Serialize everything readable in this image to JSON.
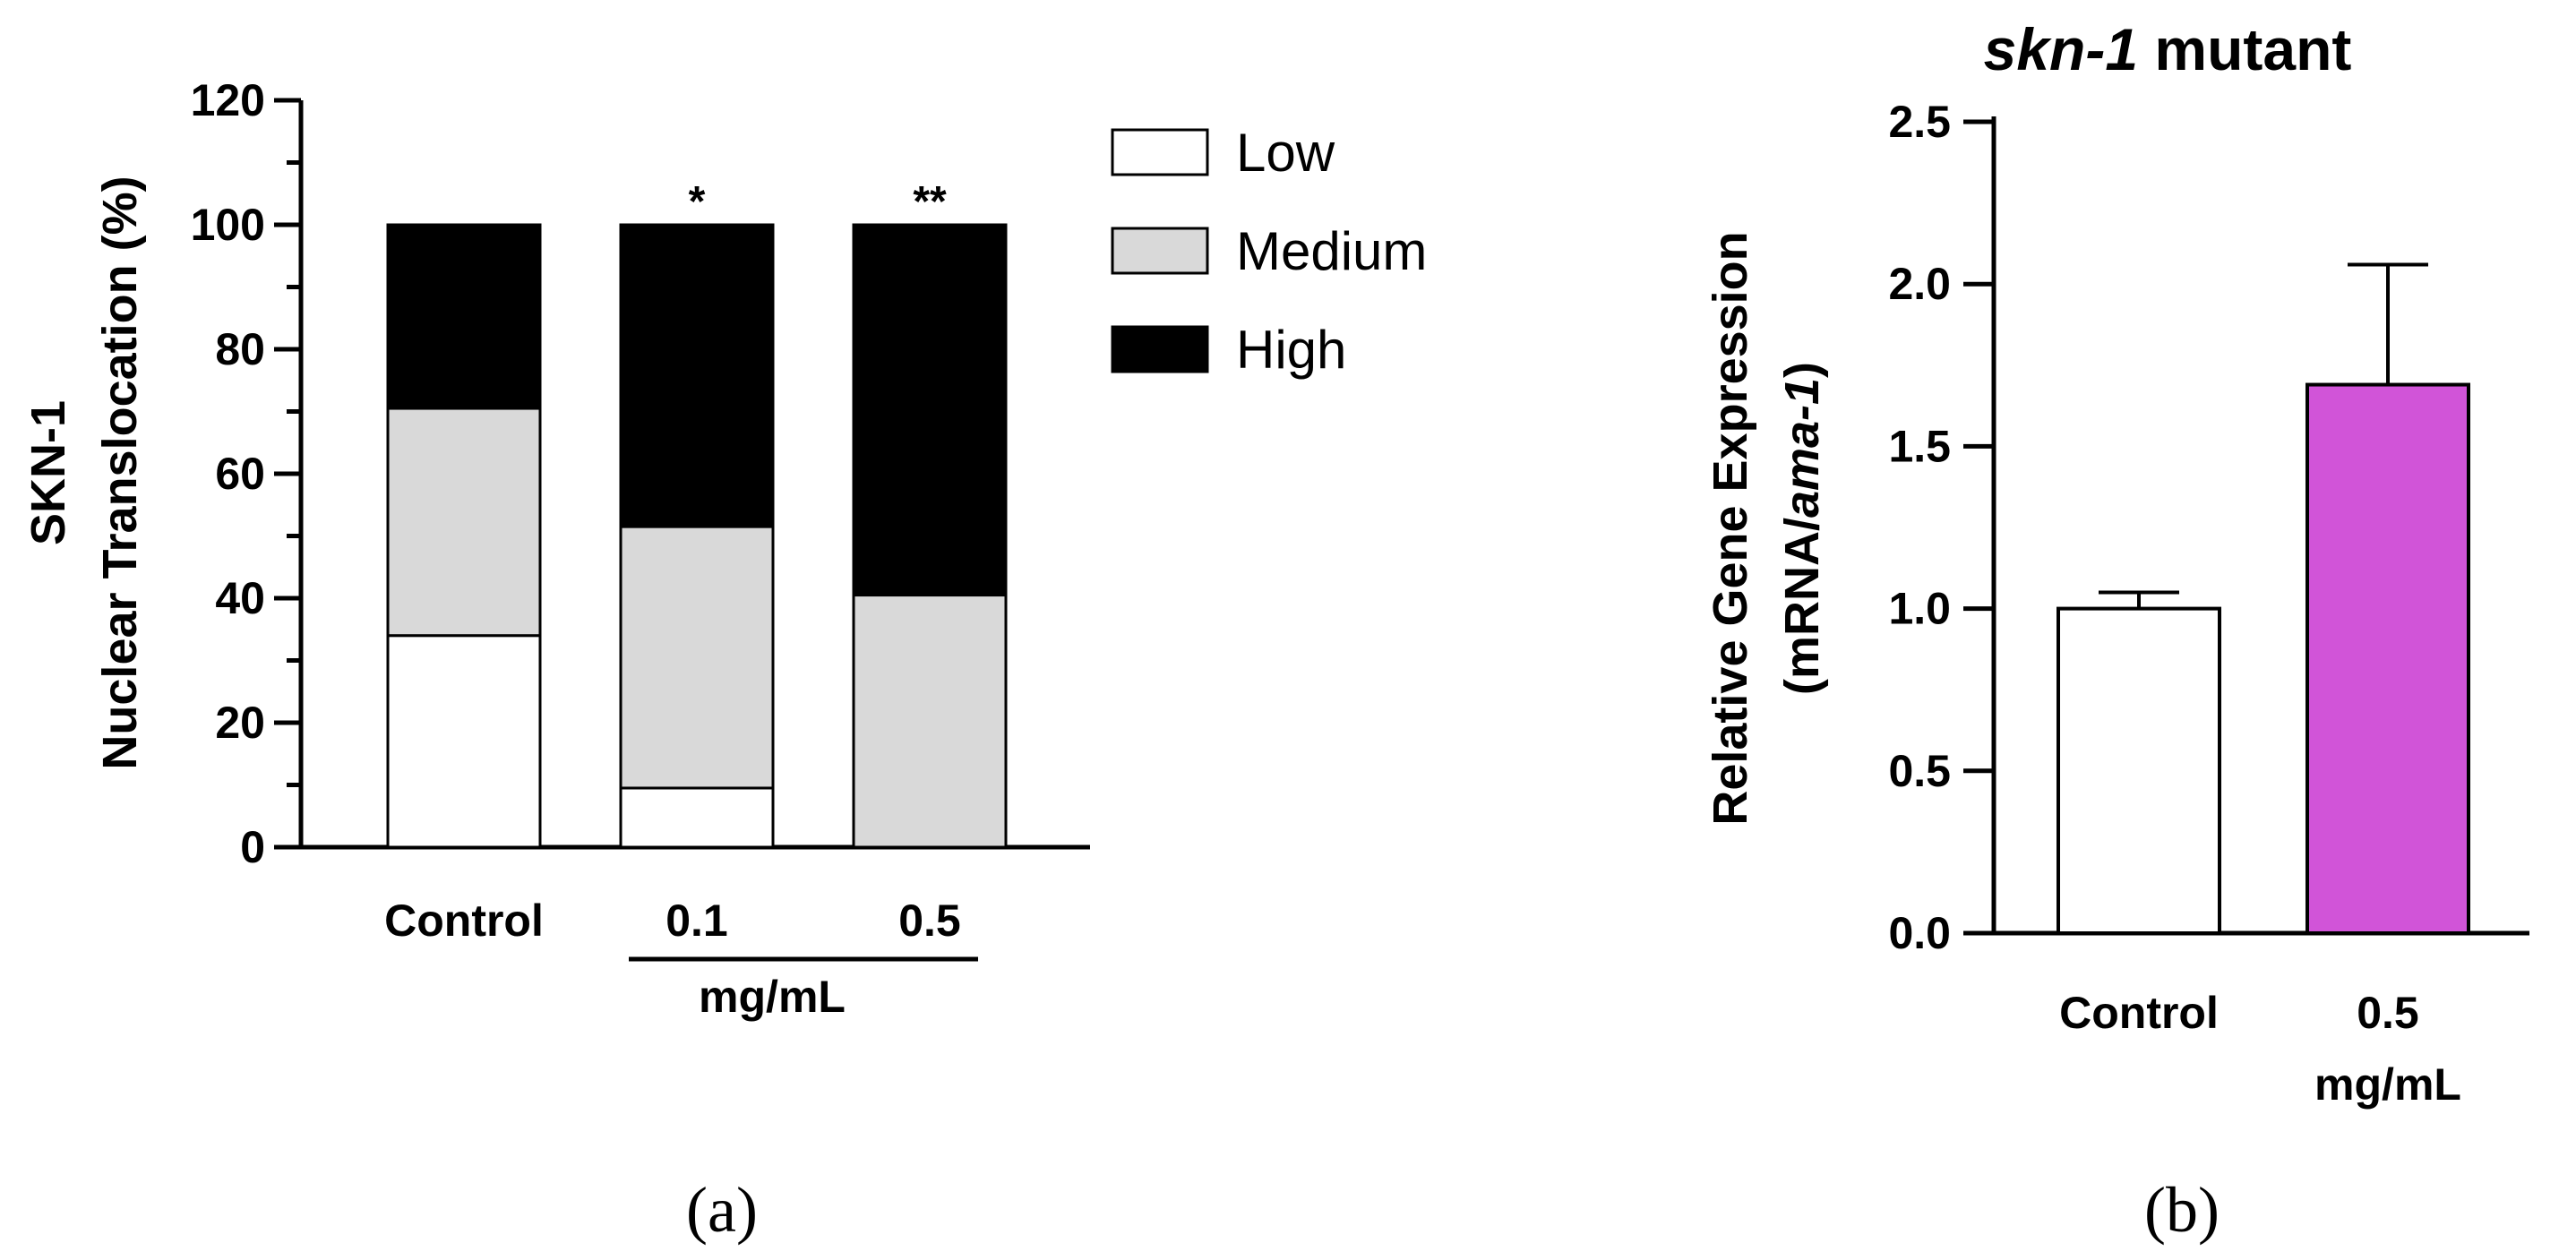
{
  "chart_data": [
    {
      "panel": "a",
      "type": "bar",
      "stacked": true,
      "title": "",
      "ylabel_line1": "SKN-1",
      "ylabel_line2": "Nuclear Translocation (%)",
      "ylim": [
        0,
        120
      ],
      "yticks": [
        "0",
        "20",
        "40",
        "60",
        "80",
        "100",
        "120"
      ],
      "categories": [
        "Control",
        "0.1",
        "0.5"
      ],
      "group_label": "mg/mL",
      "series": [
        {
          "name": "Low",
          "color": "#ffffff",
          "values": [
            34,
            9.5,
            0
          ]
        },
        {
          "name": "Medium",
          "color": "#d9d9d9",
          "values": [
            36.5,
            42,
            40.5
          ]
        },
        {
          "name": "High",
          "color": "#000000",
          "values": [
            29.5,
            48.5,
            59.5
          ]
        }
      ],
      "significance": [
        "",
        "*",
        "**"
      ],
      "panel_label": "(a)"
    },
    {
      "panel": "b",
      "type": "bar",
      "title_italic": "skn-1",
      "title_rest": " mutant",
      "ylabel_line1": "Relative Gene Expression",
      "ylabel_line2_prefix": "(mRNA/",
      "ylabel_line2_italic": "ama-1",
      "ylabel_line2_suffix": ")",
      "ylim": [
        0,
        2.5
      ],
      "yticks": [
        "0.0",
        "0.5",
        "1.0",
        "1.5",
        "2.0",
        "2.5"
      ],
      "categories": [
        "Control",
        "0.5"
      ],
      "category_sublabels": [
        "",
        "mg/mL"
      ],
      "values": [
        1.0,
        1.69
      ],
      "errors": [
        0.05,
        0.37
      ],
      "colors": [
        "#ffffff",
        "#d154d8"
      ],
      "panel_label": "(b)"
    }
  ]
}
